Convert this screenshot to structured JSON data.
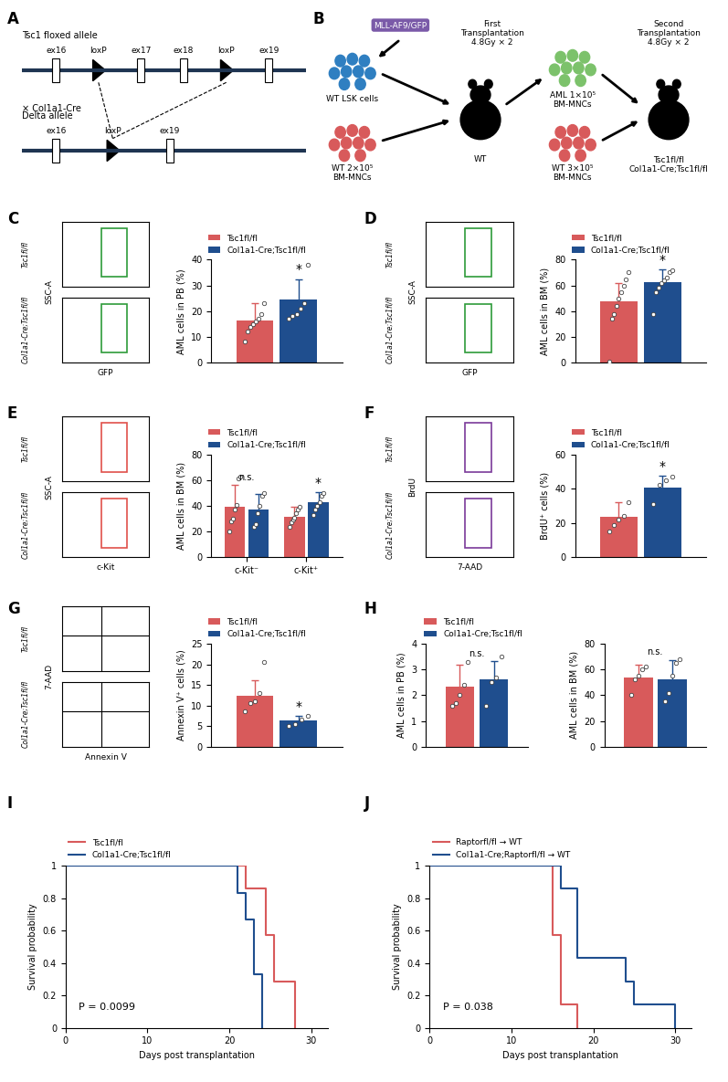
{
  "diagrams": [
    {
      "panel": "A",
      "alleles": [
        {
          "name": "Tsc1 floxed allele",
          "elements": [
            "ex16",
            "loxP",
            "ex17",
            "ex18",
            "loxP",
            "ex19"
          ]
        },
        {
          "name": "Delta allele",
          "elements": [
            "ex16",
            "loxP",
            "ex19"
          ]
        }
      ],
      "cross": "× Col1a1-Cre"
    },
    {
      "panel": "B",
      "vector": "MLL-AF9/GFP",
      "donor1": [
        "WT LSK cells",
        "WT 2×10⁵\nBM-MNCs"
      ],
      "first": "First\nTransplantation\n4.8Gy × 2",
      "first_recipient": "WT",
      "donor2": [
        "AML 1×10⁵\nBM-MNCs",
        "WT 3×10⁵\nBM-MNCs"
      ],
      "second": "Second\nTransplantation\n4.8Gy × 2",
      "second_recipient": [
        "Tsc1fl/fl",
        "Col1a1-Cre;Tsc1fl/fl"
      ]
    }
  ],
  "flow_plots": [
    {
      "panel": "C",
      "xlabel": "GFP",
      "ylabel": "SSC-A",
      "rows": [
        "Tsc1fl/fl",
        "Col1a1-Cre;Tsc1fl/fl"
      ],
      "type": "box",
      "color": "#2e9b3a"
    },
    {
      "panel": "D",
      "xlabel": "GFP",
      "ylabel": "SSC-A",
      "rows": [
        "Tsc1fl/fl",
        "Col1a1-Cre;Tsc1fl/fl"
      ],
      "type": "box",
      "color": "#2e9b3a"
    },
    {
      "panel": "E",
      "xlabel": "c-Kit",
      "ylabel": "SSC-A",
      "rows": [
        "Tsc1fl/fl",
        "Col1a1-Cre;Tsc1fl/fl"
      ],
      "type": "box",
      "color": "#e0504a"
    },
    {
      "panel": "F",
      "xlabel": "7-AAD",
      "ylabel": "BrdU",
      "rows": [
        "Tsc1fl/fl",
        "Col1a1-Cre;Tsc1fl/fl"
      ],
      "type": "box",
      "color": "#7a3a9a"
    },
    {
      "panel": "G",
      "xlabel": "Annexin V",
      "ylabel": "7-AAD",
      "rows": [
        "Tsc1fl/fl",
        "Col1a1-Cre;Tsc1fl/fl"
      ],
      "type": "quadrant",
      "color": "#000000"
    }
  ],
  "chart_data": [
    {
      "panel": "C",
      "type": "bar",
      "ylabel": "AML cells in PB (%)",
      "categories": [
        null
      ],
      "ylim": [
        0,
        40
      ],
      "yticks": [
        0,
        10,
        20,
        30,
        40
      ],
      "tick_labels": "y",
      "legend": "lower left",
      "series": [
        {
          "name": "Tsc1fl/fl",
          "color": "#d85a5b",
          "values": [
            16.5
          ],
          "errors": [
            6.5
          ],
          "points": [
            [
              8,
              12,
              14,
              15,
              16,
              17,
              19,
              23
            ]
          ]
        },
        {
          "name": "Col1a1-Cre;Tsc1fl/fl",
          "color": "#1f4e8e",
          "values": [
            24.5
          ],
          "errors": [
            8
          ],
          "points": [
            [
              17,
              18,
              19,
              21,
              23,
              38
            ]
          ]
        }
      ],
      "annotations": [
        {
          "text": "*",
          "category": 0,
          "series": 1
        }
      ]
    },
    {
      "panel": "D",
      "type": "bar",
      "ylabel": "AML cells in BM (%)",
      "categories": [
        null
      ],
      "ylim": [
        0,
        80
      ],
      "yticks": [
        0,
        20,
        40,
        60,
        80
      ],
      "tick_labels": "y",
      "legend": "lower left",
      "series": [
        {
          "name": "Tsc1fl/fl",
          "color": "#d85a5b",
          "values": [
            47.5
          ],
          "errors": [
            14.5
          ],
          "points": [
            [
              1,
              34,
              38,
              44,
              50,
              55,
              60,
              65,
              70
            ]
          ]
        },
        {
          "name": "Col1a1-Cre;Tsc1fl/fl",
          "color": "#1f4e8e",
          "values": [
            62.5
          ],
          "errors": [
            10
          ],
          "points": [
            [
              38,
              55,
              58,
              62,
              64,
              66,
              70,
              72
            ]
          ]
        }
      ],
      "annotations": [
        {
          "text": "*",
          "category": 0,
          "series": 1
        }
      ]
    },
    {
      "panel": "E",
      "type": "bar",
      "ylabel": "AML cells in BM (%)",
      "categories": [
        "c-Kit⁻",
        "c-Kit⁺"
      ],
      "ylim": [
        0,
        80
      ],
      "yticks": [
        0,
        20,
        40,
        60,
        80
      ],
      "legend": "lower left",
      "series": [
        {
          "name": "Tsc1fl/fl",
          "color": "#d85a5b",
          "values": [
            39,
            31.5
          ],
          "errors": [
            17,
            8
          ],
          "points": [
            [
              20,
              28,
              30,
              37,
              41,
              61,
              63
            ],
            [
              24,
              27,
              29,
              31,
              34,
              37,
              39
            ]
          ]
        },
        {
          "name": "Col1a1-Cre;Tsc1fl/fl",
          "color": "#1f4e8e",
          "values": [
            37.5,
            42.5
          ],
          "errors": [
            12,
            8
          ],
          "points": [
            [
              24,
              26,
              34,
              40,
              48,
              50
            ],
            [
              33,
              37,
              40,
              43,
              48,
              50
            ]
          ]
        }
      ],
      "annotations": [
        {
          "text": "n.s.",
          "category": 0
        },
        {
          "text": "*",
          "category": 1,
          "series": 1
        }
      ]
    },
    {
      "panel": "F",
      "type": "bar",
      "ylabel": "BrdU⁺ cells (%)",
      "categories": [
        null
      ],
      "ylim": [
        0,
        60
      ],
      "yticks": [
        0,
        20,
        40,
        60
      ],
      "tick_labels": "y",
      "legend": "lower left",
      "series": [
        {
          "name": "Tsc1fl/fl",
          "color": "#d85a5b",
          "values": [
            23.5
          ],
          "errors": [
            8.5
          ],
          "points": [
            [
              15,
              19,
              22,
              24,
              32
            ]
          ]
        },
        {
          "name": "Col1a1-Cre;Tsc1fl/fl",
          "color": "#1f4e8e",
          "values": [
            40.5
          ],
          "errors": [
            7
          ],
          "points": [
            [
              31,
              42,
              45,
              47
            ]
          ]
        }
      ],
      "annotations": [
        {
          "text": "*",
          "category": 0,
          "series": 1
        }
      ]
    },
    {
      "panel": "G",
      "type": "bar",
      "ylabel": "Annexin V⁺ cells (%)",
      "categories": [
        null
      ],
      "ylim": [
        0,
        25
      ],
      "yticks": [
        0,
        5,
        10,
        15,
        20,
        25
      ],
      "tick_labels": "y",
      "legend": "lower left",
      "series": [
        {
          "name": "Tsc1fl/fl",
          "color": "#d85a5b",
          "values": [
            12.3
          ],
          "errors": [
            3.8
          ],
          "points": [
            [
              8.5,
              10.5,
              11,
              13,
              20.5
            ]
          ]
        },
        {
          "name": "Col1a1-Cre;Tsc1fl/fl",
          "color": "#1f4e8e",
          "values": [
            6.4
          ],
          "errors": [
            1
          ],
          "points": [
            [
              5,
              5.5,
              6.5,
              7.5
            ]
          ]
        }
      ],
      "annotations": [
        {
          "text": "*",
          "category": 0,
          "series": 1
        }
      ]
    },
    {
      "panel": "H",
      "type": "bar",
      "ylabel": "AML cells in PB (%)",
      "categories": [
        null
      ],
      "ylim": [
        0,
        4
      ],
      "yticks": [
        0,
        1,
        2,
        3,
        4
      ],
      "tick_labels": "y",
      "legend": "lower left",
      "series": [
        {
          "name": "Tsc1fl/fl",
          "color": "#d85a5b",
          "values": [
            2.35
          ],
          "errors": [
            0.85
          ],
          "points": [
            [
              1.6,
              1.7,
              2.0,
              2.4,
              3.3
            ]
          ]
        },
        {
          "name": "Col1a1-Cre;Tsc1fl/fl",
          "color": "#1f4e8e",
          "values": [
            2.62
          ],
          "errors": [
            0.7
          ],
          "points": [
            [
              1.6,
              2.5,
              2.7,
              3.5
            ]
          ]
        }
      ],
      "annotations": [
        {
          "text": "n.s.",
          "category": 0
        }
      ]
    },
    {
      "type": "bar",
      "ylabel": "AML cells in BM (%)",
      "categories": [
        null
      ],
      "ylim": [
        0,
        80
      ],
      "yticks": [
        0,
        20,
        40,
        60,
        80
      ],
      "tick_labels": "y",
      "series": [
        {
          "name": "Tsc1fl/fl",
          "color": "#d85a5b",
          "values": [
            53.5
          ],
          "errors": [
            10
          ],
          "points": [
            [
              40,
              52,
              55,
              60,
              62
            ]
          ]
        },
        {
          "name": "Col1a1-Cre;Tsc1fl/fl",
          "color": "#1f4e8e",
          "values": [
            52.5
          ],
          "errors": [
            15
          ],
          "points": [
            [
              35,
              42,
              55,
              65,
              68
            ]
          ]
        }
      ],
      "annotations": [
        {
          "text": "n.s.",
          "category": 0
        }
      ]
    },
    {
      "panel": "I",
      "type": "line",
      "line_style": "steps",
      "xlabel": "Days post transplantation",
      "ylabel": "Survival probability",
      "xlim": [
        0,
        32
      ],
      "xticks": [
        0,
        10,
        20,
        30
      ],
      "ylim": [
        0,
        1
      ],
      "yticks": [
        0,
        0.2,
        0.4,
        0.6,
        0.8,
        1
      ],
      "legend": "lower left",
      "series": [
        {
          "name": "Tsc1fl/fl",
          "color": "#d85a5b",
          "x": [
            0,
            22,
            24.5,
            25.5,
            28
          ],
          "values": [
            1,
            0.857,
            0.571,
            0.286,
            0
          ]
        },
        {
          "name": "Col1a1-Cre;Tsc1fl/fl",
          "color": "#1f4e8e",
          "x": [
            0,
            21,
            22,
            23,
            24
          ],
          "values": [
            1,
            0.833,
            0.667,
            0.333,
            0
          ]
        }
      ],
      "annotations": [
        {
          "text": "P = 0.0099"
        }
      ]
    },
    {
      "panel": "J",
      "type": "line",
      "line_style": "steps",
      "xlabel": "Days post transplantation",
      "ylabel": "Survival probability",
      "xlim": [
        0,
        32
      ],
      "xticks": [
        0,
        10,
        20,
        30
      ],
      "ylim": [
        0,
        1
      ],
      "yticks": [
        0,
        0.2,
        0.4,
        0.6,
        0.8,
        1
      ],
      "legend": "lower left",
      "series": [
        {
          "name": "Raptorfl/fl → WT",
          "color": "#d85a5b",
          "x": [
            0,
            15,
            16,
            18
          ],
          "values": [
            1,
            0.571,
            0.143,
            0
          ]
        },
        {
          "name": "Col1a1-Cre;Raptorfl/fl → WT",
          "color": "#1f4e8e",
          "x": [
            0,
            16,
            18,
            24,
            25,
            30
          ],
          "values": [
            1,
            0.857,
            0.429,
            0.286,
            0.143,
            0
          ]
        }
      ],
      "annotations": [
        {
          "text": "P = 0.038"
        }
      ]
    }
  ]
}
